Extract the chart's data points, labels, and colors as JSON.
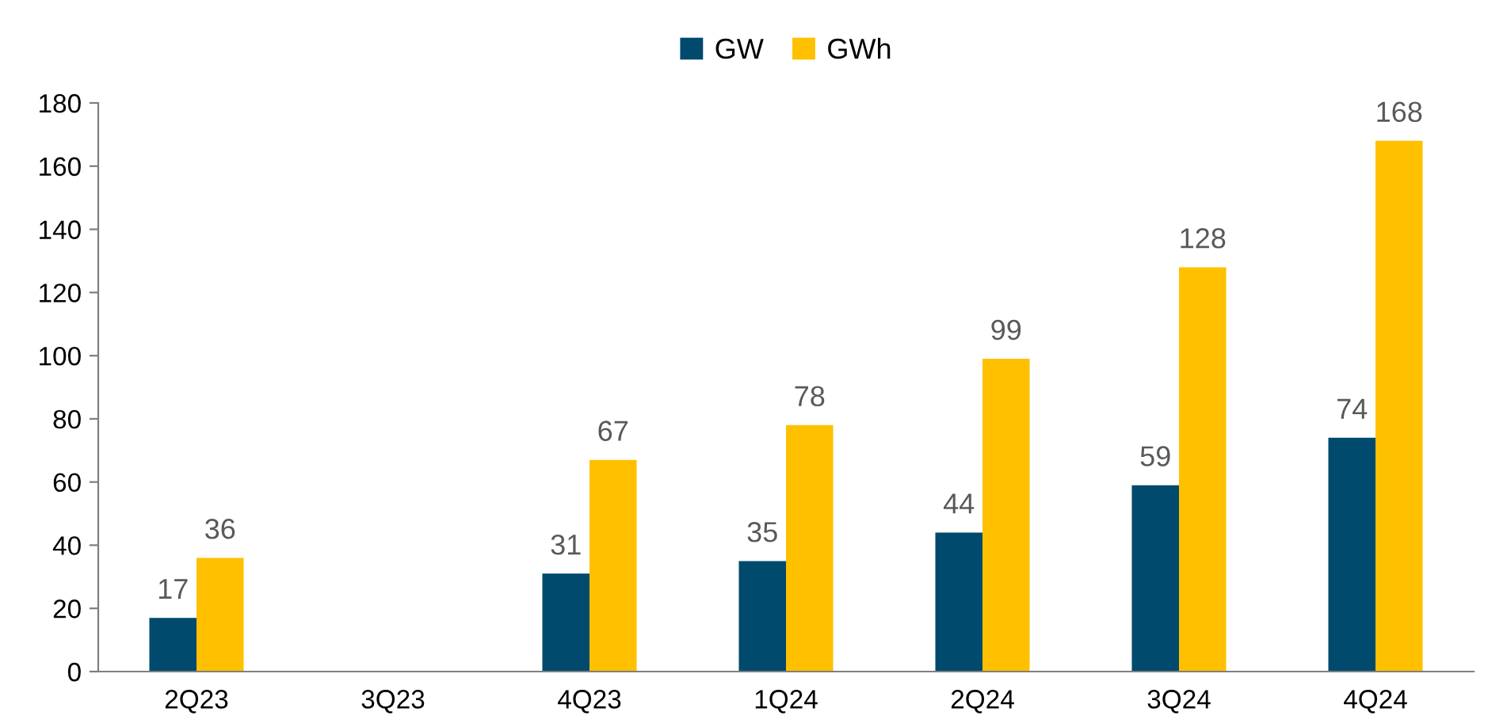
{
  "chart_data": {
    "type": "bar",
    "categories": [
      "2Q23",
      "3Q23",
      "4Q23",
      "1Q24",
      "2Q24",
      "3Q24",
      "4Q24"
    ],
    "series": [
      {
        "name": "GW",
        "color": "#004a6e",
        "values": [
          17,
          null,
          31,
          35,
          44,
          59,
          74
        ]
      },
      {
        "name": "GWh",
        "color": "#ffc000",
        "values": [
          36,
          null,
          67,
          78,
          99,
          128,
          168
        ]
      }
    ],
    "ylim": [
      0,
      180
    ],
    "yticks": [
      0,
      20,
      40,
      60,
      80,
      100,
      120,
      140,
      160,
      180
    ],
    "grid": false,
    "legend": "top",
    "data_labels": true
  }
}
